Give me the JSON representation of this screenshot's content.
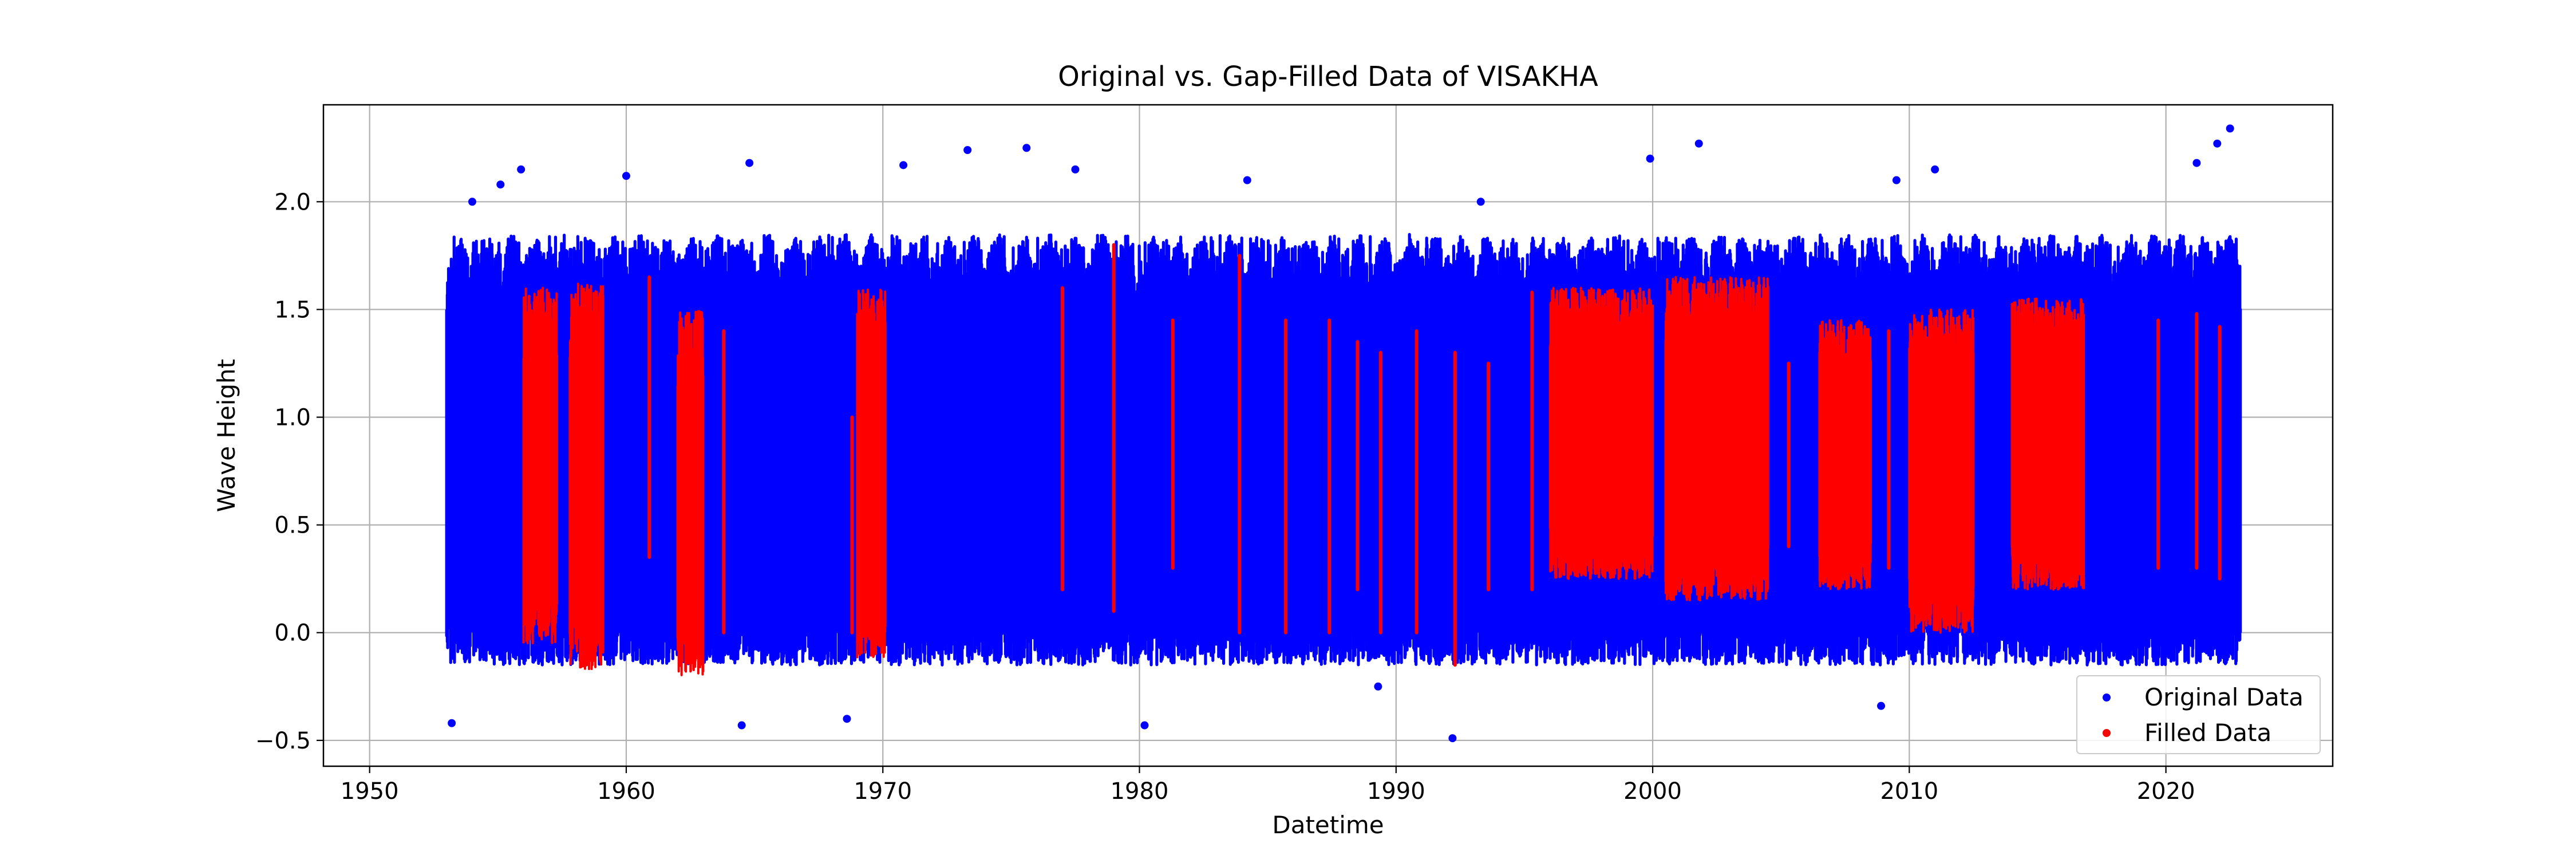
{
  "chart_data": {
    "type": "scatter",
    "title": "Original vs. Gap-Filled Data of VISAKHA",
    "xlabel": "Datetime",
    "ylabel": "Wave Height",
    "xlim": [
      1948.2,
      2026.5
    ],
    "ylim": [
      -0.62,
      2.45
    ],
    "x_ticks": [
      1950,
      1960,
      1970,
      1980,
      1990,
      2000,
      2010,
      2020
    ],
    "x_tick_labels": [
      "1950",
      "1960",
      "1970",
      "1980",
      "1990",
      "2000",
      "2010",
      "2020"
    ],
    "y_ticks": [
      -0.5,
      0.0,
      0.5,
      1.0,
      1.5,
      2.0
    ],
    "y_tick_labels": [
      "−0.5",
      "0.0",
      "0.5",
      "1.0",
      "1.5",
      "2.0"
    ],
    "grid": true,
    "legend_position": "lower-right",
    "series": [
      {
        "name": "Original Data",
        "color": "#0000ff",
        "marker": "circle",
        "x_range": [
          1953.0,
          2022.9
        ],
        "typical_low": -0.15,
        "typical_high": 1.85,
        "extremes": [
          {
            "x": 1953.2,
            "y": -0.42
          },
          {
            "x": 1954.0,
            "y": 2.0
          },
          {
            "x": 1955.1,
            "y": 2.08
          },
          {
            "x": 1955.9,
            "y": 2.15
          },
          {
            "x": 1960.0,
            "y": 2.12
          },
          {
            "x": 1964.8,
            "y": 2.18
          },
          {
            "x": 1964.5,
            "y": -0.43
          },
          {
            "x": 1968.6,
            "y": -0.4
          },
          {
            "x": 1970.8,
            "y": 2.17
          },
          {
            "x": 1973.3,
            "y": 2.24
          },
          {
            "x": 1975.6,
            "y": 2.25
          },
          {
            "x": 1977.5,
            "y": 2.15
          },
          {
            "x": 1980.2,
            "y": -0.43
          },
          {
            "x": 1984.2,
            "y": 2.1
          },
          {
            "x": 1989.3,
            "y": -0.25
          },
          {
            "x": 1992.2,
            "y": -0.49
          },
          {
            "x": 1993.3,
            "y": 2.0
          },
          {
            "x": 1999.9,
            "y": 2.2
          },
          {
            "x": 2001.8,
            "y": 2.27
          },
          {
            "x": 2009.5,
            "y": 2.1
          },
          {
            "x": 2011.0,
            "y": 2.15
          },
          {
            "x": 2008.9,
            "y": -0.34
          },
          {
            "x": 2021.2,
            "y": 2.18
          },
          {
            "x": 2022.0,
            "y": 2.27
          },
          {
            "x": 2022.5,
            "y": 2.34
          }
        ]
      },
      {
        "name": "Filled Data",
        "color": "#ff0000",
        "marker": "circle",
        "dense_segments": [
          {
            "x0": 1956.0,
            "x1": 1957.3,
            "low": -0.05,
            "high": 1.6
          },
          {
            "x0": 1957.8,
            "x1": 1959.1,
            "low": -0.18,
            "high": 1.62
          },
          {
            "x0": 1962.0,
            "x1": 1963.0,
            "low": -0.2,
            "high": 1.5
          },
          {
            "x0": 1969.0,
            "x1": 1970.1,
            "low": -0.12,
            "high": 1.6
          },
          {
            "x0": 1996.0,
            "x1": 2000.0,
            "low": 0.25,
            "high": 1.6
          },
          {
            "x0": 2000.5,
            "x1": 2004.5,
            "low": 0.15,
            "high": 1.65
          },
          {
            "x0": 2006.5,
            "x1": 2008.5,
            "low": 0.2,
            "high": 1.45
          },
          {
            "x0": 2010.0,
            "x1": 2012.5,
            "low": 0.0,
            "high": 1.5
          },
          {
            "x0": 2014.0,
            "x1": 2016.8,
            "low": 0.2,
            "high": 1.55
          }
        ],
        "bars": [
          {
            "x": 1960.9,
            "low": 0.35,
            "high": 1.65
          },
          {
            "x": 1963.8,
            "low": 0.0,
            "high": 1.4
          },
          {
            "x": 1968.8,
            "low": 0.0,
            "high": 1.0
          },
          {
            "x": 1977.0,
            "low": 0.2,
            "high": 1.6
          },
          {
            "x": 1979.0,
            "low": 0.1,
            "high": 1.8
          },
          {
            "x": 1981.3,
            "low": 0.3,
            "high": 1.45
          },
          {
            "x": 1983.9,
            "low": 0.0,
            "high": 1.75
          },
          {
            "x": 1985.7,
            "low": 0.0,
            "high": 1.45
          },
          {
            "x": 1987.4,
            "low": 0.0,
            "high": 1.45
          },
          {
            "x": 1988.5,
            "low": 0.2,
            "high": 1.35
          },
          {
            "x": 1989.4,
            "low": 0.0,
            "high": 1.3
          },
          {
            "x": 1990.8,
            "low": 0.0,
            "high": 1.4
          },
          {
            "x": 1992.3,
            "low": -0.15,
            "high": 1.3
          },
          {
            "x": 1993.6,
            "low": 0.2,
            "high": 1.25
          },
          {
            "x": 1995.3,
            "low": 0.2,
            "high": 1.58
          },
          {
            "x": 2005.3,
            "low": 0.4,
            "high": 1.25
          },
          {
            "x": 2009.2,
            "low": 0.3,
            "high": 1.4
          },
          {
            "x": 2019.7,
            "low": 0.3,
            "high": 1.45
          },
          {
            "x": 2021.2,
            "low": 0.3,
            "high": 1.48
          },
          {
            "x": 2022.1,
            "low": 0.25,
            "high": 1.42
          }
        ]
      }
    ]
  }
}
